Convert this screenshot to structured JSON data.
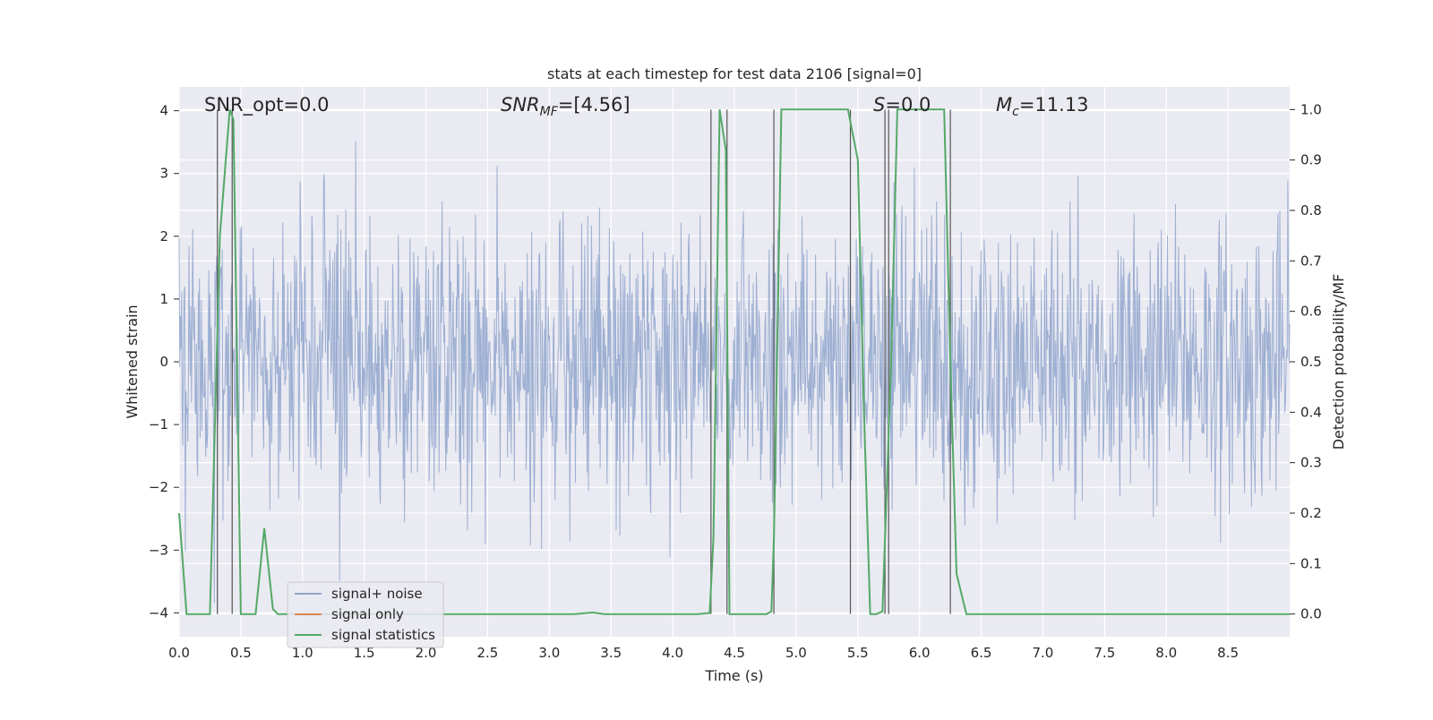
{
  "chart_data": {
    "type": "line",
    "title": "stats at each timestep for test data 2106 [signal=0]",
    "xlabel": "Time (s)",
    "ylabel_left": "Whitened strain",
    "ylabel_right": "Detection probability/MF",
    "xlim": [
      0.0,
      9.0
    ],
    "ylim_left": [
      -4.38,
      4.38
    ],
    "ylim_right": [
      -0.045,
      1.045
    ],
    "xticks": [
      0.0,
      0.5,
      1.0,
      1.5,
      2.0,
      2.5,
      3.0,
      3.5,
      4.0,
      4.5,
      5.0,
      5.5,
      6.0,
      6.5,
      7.0,
      7.5,
      8.0,
      8.5
    ],
    "xtick_labels": [
      "0.0",
      "0.5",
      "1.0",
      "1.5",
      "2.0",
      "2.5",
      "3.0",
      "3.5",
      "4.0",
      "4.5",
      "5.0",
      "5.5",
      "6.0",
      "6.5",
      "7.0",
      "7.5",
      "8.0",
      "8.5"
    ],
    "yticks_left": [
      4,
      3,
      2,
      1,
      0,
      -1,
      -2,
      -3,
      -4
    ],
    "ytick_labels_left": [
      "4",
      "3",
      "2",
      "1",
      "0",
      "−1",
      "−2",
      "−3",
      "−4"
    ],
    "yticks_right": [
      1.0,
      0.9,
      0.8,
      0.7,
      0.6,
      0.5,
      0.4,
      0.3,
      0.2,
      0.1,
      0.0
    ],
    "ytick_labels_right": [
      "1.0",
      "0.9",
      "0.8",
      "0.7",
      "0.6",
      "0.5",
      "0.4",
      "0.3",
      "0.2",
      "0.1",
      "0.0"
    ],
    "grid": true,
    "legend_placement": "lower-left",
    "annotations": {
      "snr_opt": "SNR_opt=0.0",
      "snr_mf_main": "SNR",
      "snr_mf_sub": "MF",
      "snr_mf_value": "=[4.56]",
      "s_symbol": "S",
      "s_value": "=0.0",
      "mc_symbol": "M",
      "mc_sub": "c",
      "mc_value": "=11.13"
    },
    "series": [
      {
        "name": "signal+ noise",
        "color": "#8fa4cc",
        "description_values": "white-noise strain, amplitude mostly within ±2 with spikes up to ±4"
      },
      {
        "name": "signal only",
        "color": "#dd8452",
        "values": []
      },
      {
        "name": "signal statistics",
        "color": "#55a868",
        "axis": "right",
        "x": [
          0.0,
          0.06,
          0.1,
          0.25,
          0.33,
          0.41,
          0.44,
          0.5,
          0.53,
          0.56,
          0.62,
          0.69,
          0.76,
          0.8,
          0.85,
          1.0,
          3.2,
          3.35,
          3.45,
          4.0,
          4.2,
          4.3,
          4.33,
          4.38,
          4.43,
          4.46,
          4.5,
          4.76,
          4.8,
          4.82,
          4.88,
          5.42,
          5.5,
          5.55,
          5.6,
          5.65,
          5.7,
          5.77,
          5.82,
          5.85,
          6.2,
          6.25,
          6.3,
          6.38,
          9.0
        ],
        "y": [
          0.2,
          0.0,
          0.0,
          0.0,
          0.75,
          1.0,
          0.98,
          0.0,
          0.0,
          0.0,
          0.0,
          0.17,
          0.01,
          0.0,
          0.0,
          0.0,
          0.0,
          0.003,
          0.0,
          0.0,
          0.0,
          0.002,
          0.15,
          1.0,
          0.92,
          0.0,
          0.0,
          0.0,
          0.005,
          0.15,
          1.0,
          1.0,
          0.9,
          0.4,
          0.0,
          0.0,
          0.005,
          0.5,
          1.0,
          1.0,
          1.0,
          0.5,
          0.08,
          0.0,
          0.0
        ]
      }
    ],
    "vertical_lines_x": [
      0.31,
      0.43,
      4.31,
      4.44,
      4.82,
      5.44,
      5.72,
      5.75,
      6.25
    ],
    "vertical_lines_ylim": [
      0.0,
      1.0
    ],
    "colors": {
      "axes_bg": "#eaeaf2",
      "grid": "#ffffff",
      "noise": "#8fa4cc",
      "stat": "#55a868",
      "signal_only": "#dd8452",
      "vline": "#555555"
    }
  }
}
